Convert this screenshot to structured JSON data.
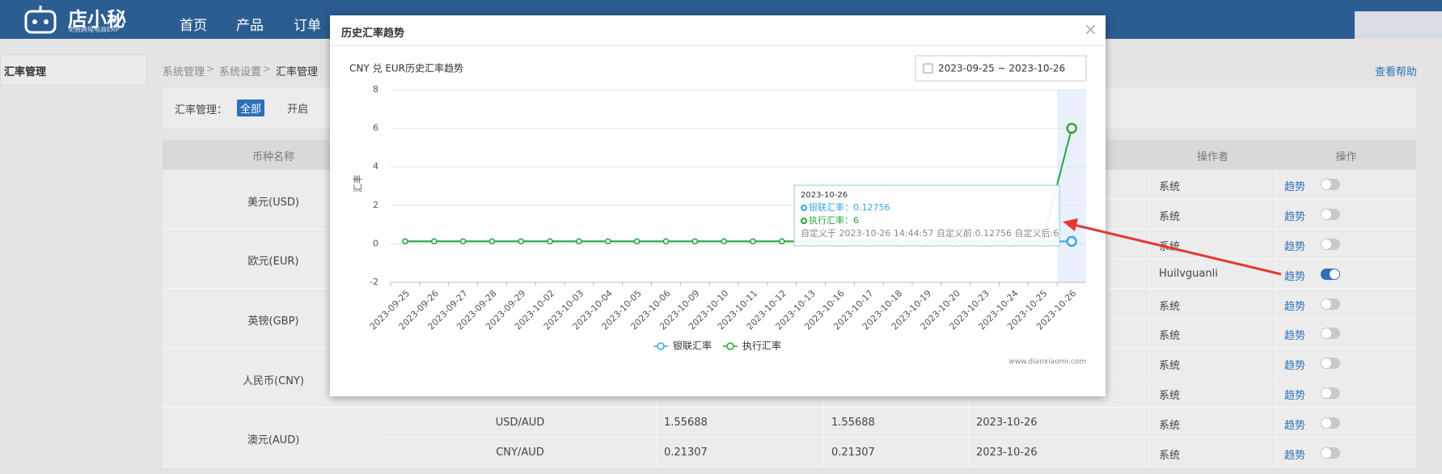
{
  "header": {
    "logo": "店小秘",
    "logo_sub": "免费跨境电商ERP",
    "nav": [
      "首页",
      "产品",
      "订单"
    ]
  },
  "sidebar": {
    "active": "汇率管理"
  },
  "breadcrumb": {
    "items": [
      "系统管理",
      "系统设置",
      "汇率管理"
    ],
    "separator": ">"
  },
  "help": "查看帮助",
  "filter": {
    "label": "汇率管理：",
    "options": [
      "全部",
      "开启"
    ]
  },
  "table": {
    "headers": {
      "currency": "币种名称",
      "operator": "操作者",
      "action": "操作"
    },
    "groups": [
      {
        "name": "美元(USD)",
        "rows": [
          {
            "operator": "系统",
            "action": "趋势",
            "enabled": false
          },
          {
            "operator": "系统",
            "action": "趋势",
            "enabled": false
          }
        ]
      },
      {
        "name": "欧元(EUR)",
        "rows": [
          {
            "operator": "系统",
            "action": "趋势",
            "enabled": false
          },
          {
            "operator": "Huilvguanli",
            "action": "趋势",
            "enabled": true
          }
        ]
      },
      {
        "name": "英镑(GBP)",
        "rows": [
          {
            "operator": "系统",
            "action": "趋势",
            "enabled": false
          },
          {
            "operator": "系统",
            "action": "趋势",
            "enabled": false
          }
        ]
      },
      {
        "name": "人民币(CNY)",
        "rows": [
          {
            "operator": "系统",
            "action": "趋势",
            "enabled": false
          },
          {
            "operator": "系统",
            "action": "趋势",
            "enabled": false
          }
        ]
      },
      {
        "name": "澳元(AUD)",
        "rows": [
          {
            "pair": "USD/AUD",
            "union_rate": 1.55688,
            "exec_rate": 1.55688,
            "updated": "2023-10-26",
            "operator": "系统",
            "action": "趋势",
            "enabled": false
          },
          {
            "pair": "CNY/AUD",
            "union_rate": 0.21307,
            "exec_rate": 0.21307,
            "updated": "2023-10-26",
            "operator": "系统",
            "action": "趋势",
            "enabled": false
          }
        ]
      }
    ]
  },
  "modal": {
    "title": "历史汇率趋势",
    "close": "×",
    "date_range": "2023-09-25 ~ 2023-10-26",
    "watermark": "www.dianxiaomi.com"
  },
  "chart_data": {
    "type": "line",
    "title": "CNY 兑 EUR历史汇率趋势",
    "y_label": "汇率",
    "categories": [
      "2023-09-25",
      "2023-09-26",
      "2023-09-27",
      "2023-09-28",
      "2023-09-29",
      "2023-10-02",
      "2023-10-03",
      "2023-10-04",
      "2023-10-05",
      "2023-10-06",
      "2023-10-09",
      "2023-10-10",
      "2023-10-11",
      "2023-10-12",
      "2023-10-13",
      "2023-10-16",
      "2023-10-17",
      "2023-10-18",
      "2023-10-19",
      "2023-10-20",
      "2023-10-23",
      "2023-10-24",
      "2023-10-25",
      "2023-10-26"
    ],
    "series": [
      {
        "name": "银联汇率",
        "color": "#3aa6de",
        "values": [
          0.12756,
          0.12756,
          0.12756,
          0.12756,
          0.12756,
          0.12756,
          0.12756,
          0.12756,
          0.12756,
          0.12756,
          0.12756,
          0.12756,
          0.12756,
          0.12756,
          0.12756,
          0.12756,
          0.12756,
          0.12756,
          0.12756,
          0.12756,
          0.12756,
          0.12756,
          0.12756,
          0.12756
        ]
      },
      {
        "name": "执行汇率",
        "color": "#2aa53a",
        "values": [
          0.12756,
          0.12756,
          0.12756,
          0.12756,
          0.12756,
          0.12756,
          0.12756,
          0.12756,
          0.12756,
          0.12756,
          0.12756,
          0.12756,
          0.12756,
          0.12756,
          0.12756,
          0.12756,
          0.12756,
          0.12756,
          0.12756,
          0.12756,
          0.12756,
          0.12756,
          0.12756,
          6
        ]
      }
    ],
    "ylim": [
      -2,
      8
    ],
    "yticks": [
      -2,
      0,
      2,
      4,
      6,
      8
    ],
    "grid": true,
    "tooltip": {
      "title": "2023-10-26",
      "lines": [
        "银联汇率：0.12756",
        "执行汇率：6"
      ],
      "note": "自定义于 2023-10-26 14:44:57 自定义前:0.12756 自定义后:6"
    }
  }
}
